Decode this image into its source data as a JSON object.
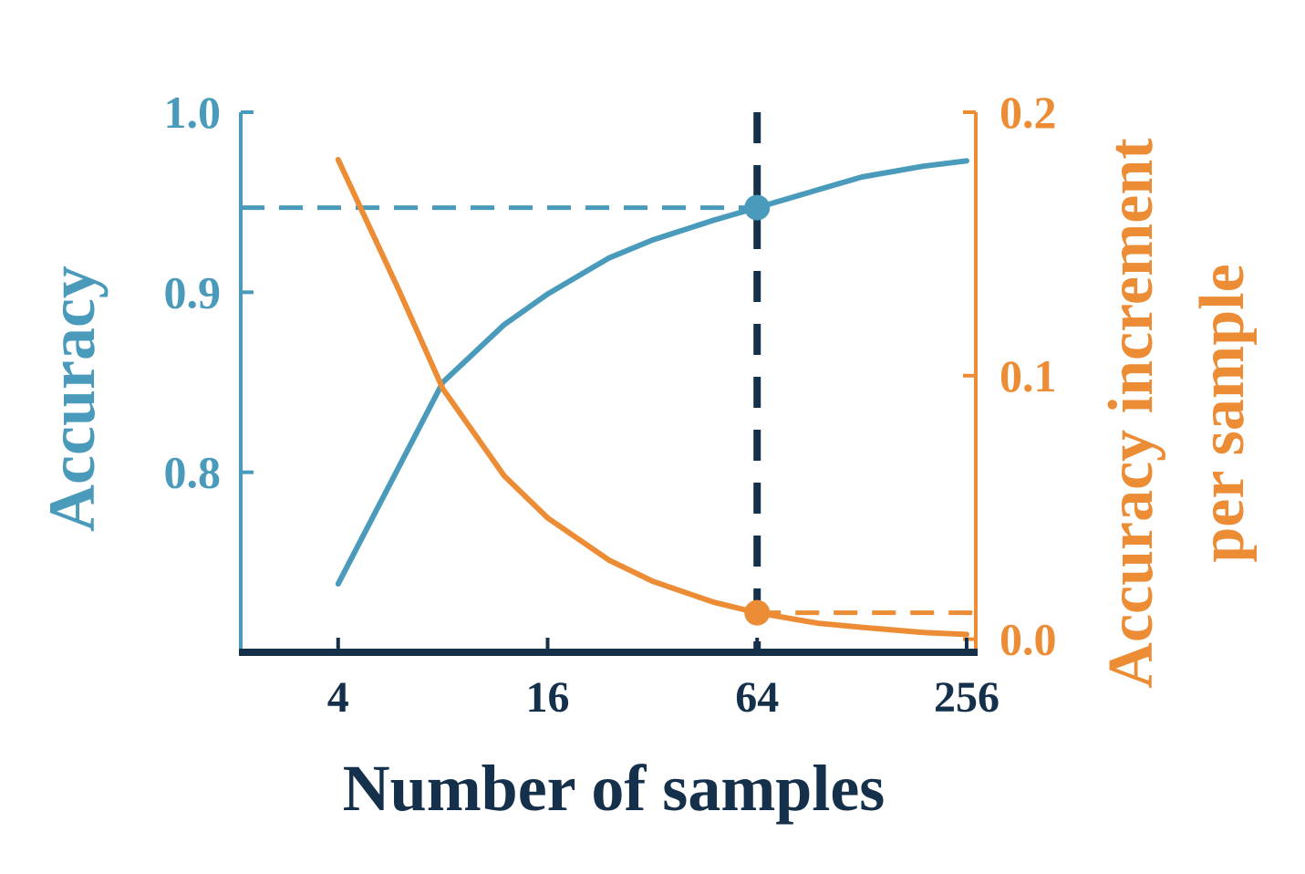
{
  "colors": {
    "left_axis": "#4a9bbb",
    "right_axis": "#ec8c35",
    "dark": "#14304a",
    "background": "#ffffff"
  },
  "chart_data": {
    "type": "line",
    "xlabel": "Number of samples",
    "ylabel": "Accuracy",
    "y2label_lines": [
      "Accuracy increment",
      "per sample"
    ],
    "x_scale": "log2",
    "xlim": [
      2.1,
      272
    ],
    "x_ticks": [
      4,
      16,
      64,
      256
    ],
    "x_tick_labels": [
      "4",
      "16",
      "64",
      "256"
    ],
    "ylim": [
      0.7,
      1.0
    ],
    "y_ticks": [
      0.8,
      0.9,
      1.0
    ],
    "y_tick_labels": [
      "0.8",
      "0.9",
      "1.0"
    ],
    "y2lim": [
      -0.005,
      0.2
    ],
    "y2_ticks": [
      0.0,
      0.1,
      0.2
    ],
    "y2_tick_labels": [
      "0.0",
      "0.1",
      "0.2"
    ],
    "grid": false,
    "series": [
      {
        "axis": "left",
        "color": "#4a9bbb",
        "x": [
          4,
          8,
          12,
          16,
          24,
          32,
          48,
          64,
          96,
          128,
          192,
          256
        ],
        "y": [
          0.738,
          0.85,
          0.882,
          0.899,
          0.919,
          0.929,
          0.94,
          0.947,
          0.957,
          0.964,
          0.97,
          0.973
        ]
      },
      {
        "axis": "right",
        "color": "#ec8c35",
        "x": [
          4,
          6,
          8,
          12,
          16,
          24,
          32,
          48,
          64,
          96,
          128,
          192,
          256
        ],
        "y": [
          0.182,
          0.132,
          0.095,
          0.062,
          0.046,
          0.03,
          0.022,
          0.014,
          0.01,
          0.006,
          0.0045,
          0.0025,
          0.0018
        ]
      }
    ],
    "highlight": {
      "x": 64,
      "accuracy": 0.947,
      "increment": 0.01
    }
  }
}
